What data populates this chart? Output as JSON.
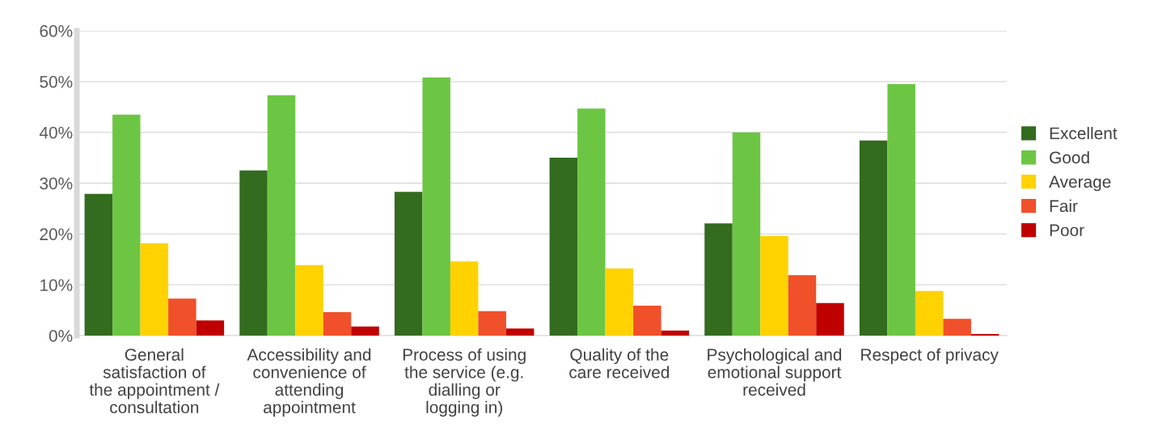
{
  "chart_data": {
    "type": "bar",
    "categories": [
      "General satisfaction of the appointment / consultation",
      "Accessibility and convenience of attending appointment",
      "Process of using the service (e.g. dialling or logging in)",
      "Quality of the care received",
      "Psychological and emotional support received",
      "Respect of privacy"
    ],
    "series": [
      {
        "name": "Excellent",
        "color": "#336b1f",
        "values": [
          27.9,
          32.5,
          28.3,
          35.0,
          22.1,
          38.4
        ]
      },
      {
        "name": "Good",
        "color": "#6cc644",
        "values": [
          43.5,
          47.3,
          50.8,
          44.7,
          40.0,
          49.5
        ]
      },
      {
        "name": "Average",
        "color": "#ffd200",
        "values": [
          18.2,
          13.9,
          14.6,
          13.2,
          19.6,
          8.8
        ]
      },
      {
        "name": "Fair",
        "color": "#f0502a",
        "values": [
          7.3,
          4.6,
          4.8,
          5.9,
          11.9,
          3.3
        ]
      },
      {
        "name": "Poor",
        "color": "#c00000",
        "values": [
          3.0,
          1.8,
          1.4,
          1.0,
          6.4,
          0.3
        ]
      }
    ],
    "ylim": [
      0,
      60
    ],
    "yticks": [
      {
        "value": 0,
        "label": "0%"
      },
      {
        "value": 10,
        "label": "10%"
      },
      {
        "value": 20,
        "label": "20%"
      },
      {
        "value": 30,
        "label": "30%"
      },
      {
        "value": 40,
        "label": "40%"
      },
      {
        "value": 50,
        "label": "50%"
      },
      {
        "value": 60,
        "label": "60%"
      }
    ],
    "grid": "y",
    "legend": "right"
  }
}
